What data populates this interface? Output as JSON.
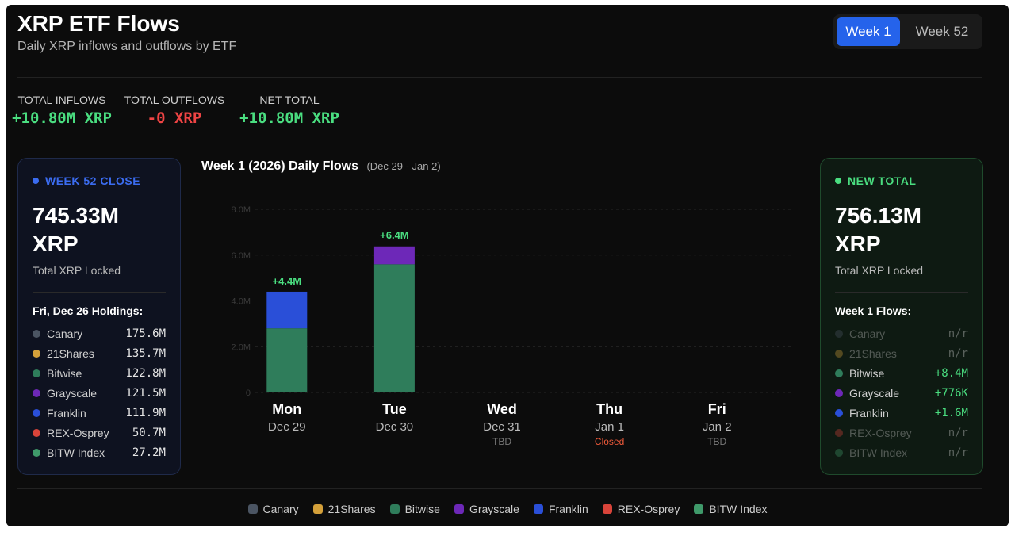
{
  "header": {
    "title": "XRP ETF Flows",
    "subtitle": "Daily XRP inflows and outflows by ETF",
    "tabs": [
      "Week 1",
      "Week 52"
    ]
  },
  "stats": [
    {
      "label": "TOTAL INFLOWS",
      "value": "+10.80M XRP",
      "color": "#4ade80"
    },
    {
      "label": "TOTAL OUTFLOWS",
      "value": "-0 XRP",
      "color": "#ef4444"
    },
    {
      "label": "NET TOTAL",
      "value": "+10.80M XRP",
      "color": "#4ade80"
    }
  ],
  "left_card": {
    "tag": "WEEK 52 CLOSE",
    "amount": "745.33M",
    "unit": "XRP",
    "caption": "Total XRP Locked",
    "list_title": "Fri, Dec 26 Holdings:",
    "rows": [
      {
        "name": "Canary",
        "value": "175.6M",
        "color": "#4b5563",
        "active": true
      },
      {
        "name": "21Shares",
        "value": "135.7M",
        "color": "#d4a03a",
        "active": true
      },
      {
        "name": "Bitwise",
        "value": "122.8M",
        "color": "#2f7d5b",
        "active": true
      },
      {
        "name": "Grayscale",
        "value": "121.5M",
        "color": "#6d28b8",
        "active": true
      },
      {
        "name": "Franklin",
        "value": "111.9M",
        "color": "#2a4fd8",
        "active": true
      },
      {
        "name": "REX-Osprey",
        "value": "50.7M",
        "color": "#d9443a",
        "active": true
      },
      {
        "name": "BITW Index",
        "value": "27.2M",
        "color": "#3f9a6a",
        "active": true
      }
    ]
  },
  "right_card": {
    "tag": "NEW TOTAL",
    "amount": "756.13M",
    "unit": "XRP",
    "caption": "Total XRP Locked",
    "list_title": "Week 1 Flows:",
    "rows": [
      {
        "name": "Canary",
        "value": "n/r",
        "color": "#4b5563",
        "active": false
      },
      {
        "name": "21Shares",
        "value": "n/r",
        "color": "#d4a03a",
        "active": false
      },
      {
        "name": "Bitwise",
        "value": "+8.4M",
        "color": "#2f7d5b",
        "active": true
      },
      {
        "name": "Grayscale",
        "value": "+776K",
        "color": "#6d28b8",
        "active": true
      },
      {
        "name": "Franklin",
        "value": "+1.6M",
        "color": "#2a4fd8",
        "active": true
      },
      {
        "name": "REX-Osprey",
        "value": "n/r",
        "color": "#d9443a",
        "active": false
      },
      {
        "name": "BITW Index",
        "value": "n/r",
        "color": "#3f9a6a",
        "active": false
      }
    ]
  },
  "chart_data": {
    "type": "stacked_bar",
    "title": "Week 1 (2026) Daily Flows",
    "subtitle": "(Dec 29 - Jan 2)",
    "categories": [
      "Mon",
      "Tue",
      "Wed",
      "Thu",
      "Fri"
    ],
    "dates": [
      "Dec 29",
      "Dec 30",
      "Dec 31",
      "Jan 1",
      "Jan 2"
    ],
    "notes": [
      null,
      null,
      "TBD",
      "Closed",
      "TBD"
    ],
    "ylim": [
      0,
      8
    ],
    "yticks": [
      {
        "value": 0,
        "label": "0"
      },
      {
        "value": 2,
        "label": "2.0M"
      },
      {
        "value": 4,
        "label": "4.0M"
      },
      {
        "value": 6,
        "label": "6.0M"
      },
      {
        "value": 8,
        "label": "8.0M"
      }
    ],
    "grid": true,
    "totals": [
      4.4,
      6.4
    ],
    "total_labels": [
      "+4.4M",
      "+6.4M"
    ],
    "series": [
      {
        "name": "Canary",
        "color": "#4b5563",
        "values": [
          null,
          null,
          null,
          null,
          null
        ]
      },
      {
        "name": "21Shares",
        "color": "#d4a03a",
        "values": [
          null,
          null,
          null,
          null,
          null
        ]
      },
      {
        "name": "Bitwise",
        "color": "#2f7d5b",
        "values": [
          2.8,
          5.6,
          null,
          null,
          null
        ]
      },
      {
        "name": "Grayscale",
        "color": "#6d28b8",
        "values": [
          null,
          0.78,
          null,
          null,
          null
        ]
      },
      {
        "name": "Franklin",
        "color": "#2a4fd8",
        "values": [
          1.6,
          null,
          null,
          null,
          null
        ]
      },
      {
        "name": "REX-Osprey",
        "color": "#d9443a",
        "values": [
          null,
          null,
          null,
          null,
          null
        ]
      },
      {
        "name": "BITW Index",
        "color": "#3f9a6a",
        "values": [
          null,
          null,
          null,
          null,
          null
        ]
      }
    ]
  }
}
